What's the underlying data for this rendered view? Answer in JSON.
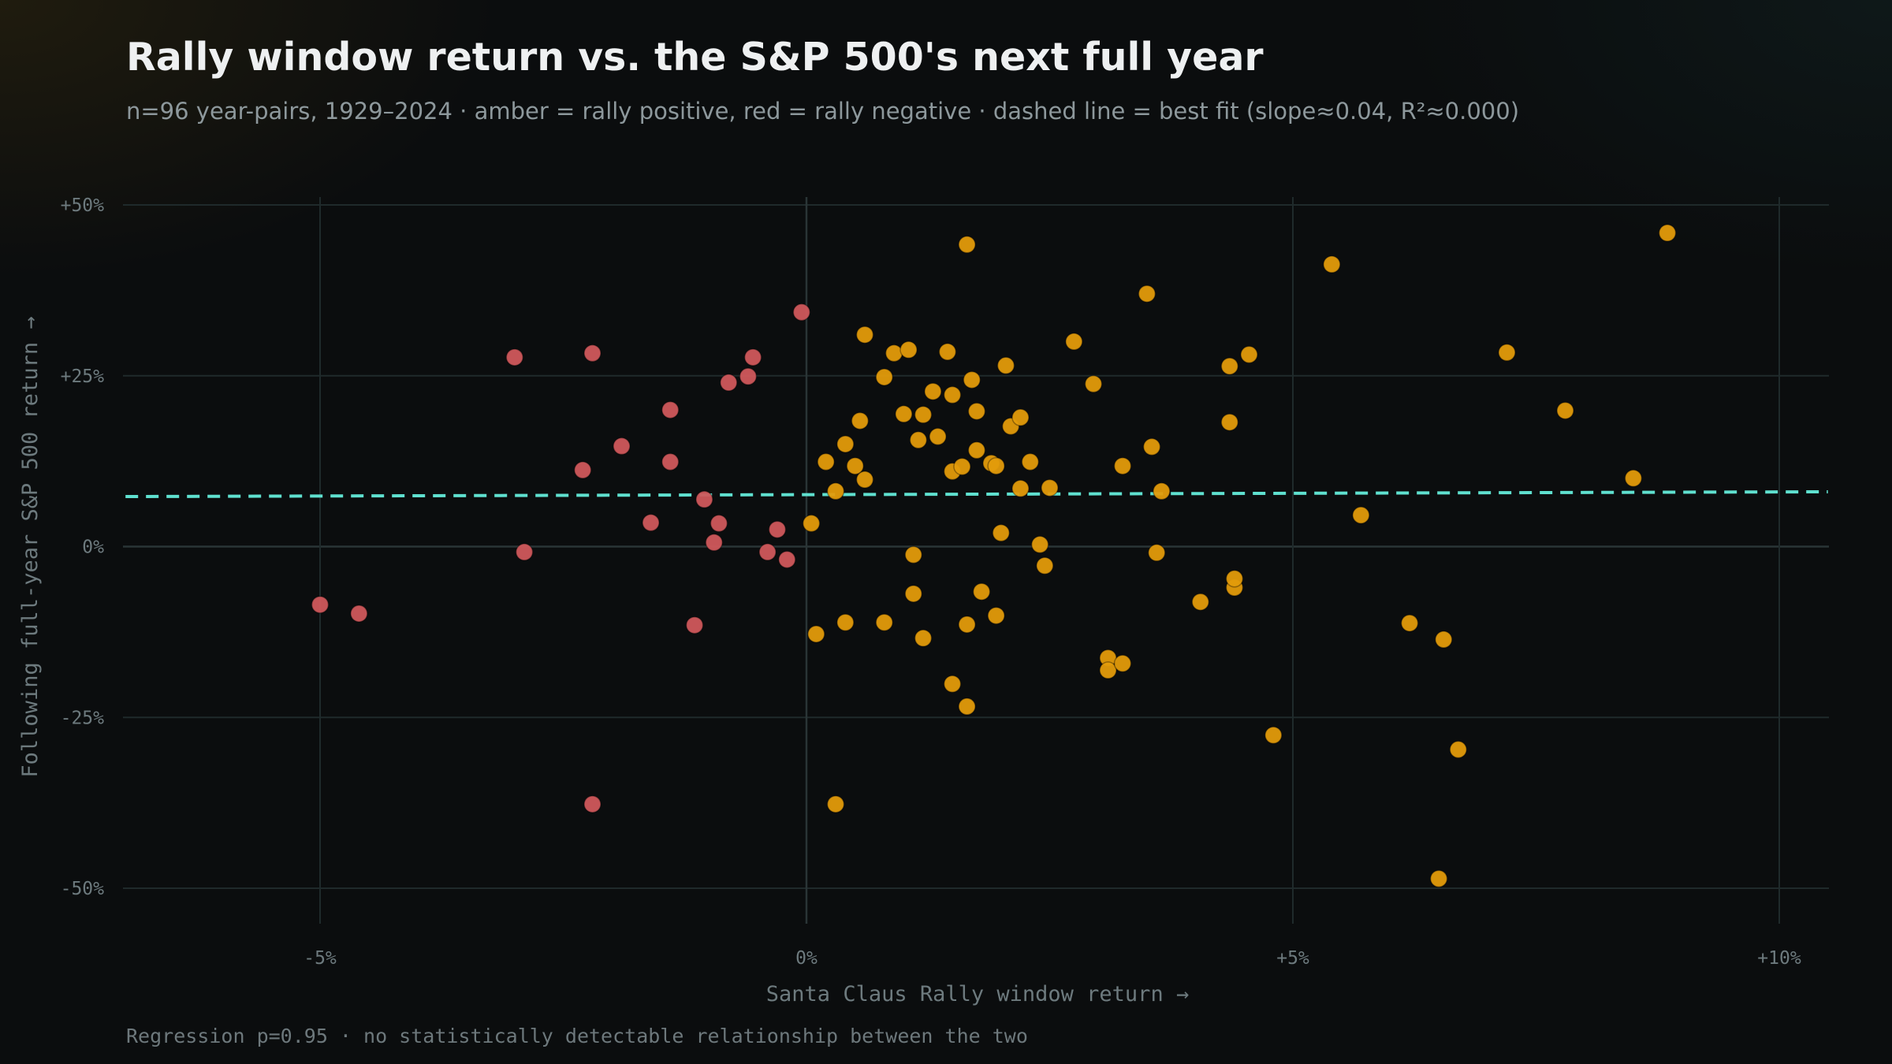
{
  "header": {
    "title": "Rally window return vs. the S&P 500's next full year",
    "subtitle": "n=96 year-pairs, 1929–2024 · amber = rally positive, red = rally negative · dashed line = best fit (slope≈0.04, R²≈0.000)"
  },
  "footnote": "Regression p=0.95 · no statistically detectable relationship between the two",
  "colors": {
    "positive": "#e39b0b",
    "negative": "#d0595c",
    "fit_line": "#5fe0cf",
    "grid": "#1f2a2b",
    "zero_line": "#2a3536"
  },
  "chart_data": {
    "type": "scatter",
    "title": "Rally window return vs. the S&P 500's next full year",
    "xlabel": "Santa Claus Rally window return →",
    "ylabel": "Following full-year S&P 500 return →",
    "xlim": [
      -7.0,
      10.5
    ],
    "ylim": [
      -55,
      50
    ],
    "x_ticks": [
      -5,
      0,
      5,
      10
    ],
    "x_tick_labels": [
      "-5%",
      "0%",
      "+5%",
      "+10%"
    ],
    "y_ticks": [
      50,
      25,
      0,
      -25,
      -50
    ],
    "y_tick_labels": [
      "+50%",
      "+25%",
      "0%",
      "-25%",
      "-50%"
    ],
    "grid": true,
    "fit_line": {
      "slope": 0.04,
      "intercept": 7.6,
      "style": "dashed"
    },
    "series": [
      {
        "color_key": "negative",
        "points": [
          [
            -5.0,
            -8.5
          ],
          [
            -4.6,
            -9.8
          ],
          [
            -3.0,
            27.7
          ],
          [
            -2.9,
            -0.8
          ],
          [
            -2.3,
            11.2
          ],
          [
            -2.2,
            28.3
          ],
          [
            -2.2,
            -37.7
          ],
          [
            -1.9,
            14.7
          ],
          [
            -1.6,
            3.5
          ],
          [
            -1.4,
            20.0
          ],
          [
            -1.4,
            12.4
          ],
          [
            -1.15,
            -11.5
          ],
          [
            -1.05,
            6.9
          ],
          [
            -0.95,
            0.6
          ],
          [
            -0.9,
            3.4
          ],
          [
            -0.8,
            24.0
          ],
          [
            -0.6,
            24.9
          ],
          [
            -0.55,
            27.7
          ],
          [
            -0.4,
            -0.8
          ],
          [
            -0.3,
            2.5
          ],
          [
            -0.2,
            -1.9
          ],
          [
            -0.05,
            34.3
          ]
        ]
      },
      {
        "color_key": "positive",
        "points": [
          [
            0.05,
            3.4
          ],
          [
            0.1,
            -12.8
          ],
          [
            0.2,
            12.4
          ],
          [
            0.3,
            8.1
          ],
          [
            0.3,
            -37.7
          ],
          [
            0.4,
            15.0
          ],
          [
            0.4,
            -11.1
          ],
          [
            0.5,
            11.8
          ],
          [
            0.55,
            18.4
          ],
          [
            0.6,
            31.0
          ],
          [
            0.6,
            9.8
          ],
          [
            0.8,
            24.8
          ],
          [
            0.8,
            -11.1
          ],
          [
            0.9,
            28.3
          ],
          [
            1.0,
            19.4
          ],
          [
            1.05,
            28.8
          ],
          [
            1.1,
            -6.9
          ],
          [
            1.1,
            -1.2
          ],
          [
            1.15,
            15.6
          ],
          [
            1.2,
            19.3
          ],
          [
            1.2,
            -13.4
          ],
          [
            1.3,
            22.7
          ],
          [
            1.35,
            16.1
          ],
          [
            1.45,
            28.5
          ],
          [
            1.5,
            22.2
          ],
          [
            1.5,
            -20.1
          ],
          [
            1.5,
            11.0
          ],
          [
            1.6,
            11.7
          ],
          [
            1.65,
            44.2
          ],
          [
            1.65,
            -11.4
          ],
          [
            1.65,
            -23.4
          ],
          [
            1.7,
            24.4
          ],
          [
            1.75,
            19.8
          ],
          [
            1.75,
            14.1
          ],
          [
            1.8,
            -6.6
          ],
          [
            1.9,
            12.2
          ],
          [
            1.95,
            11.8
          ],
          [
            1.95,
            -10.1
          ],
          [
            2.0,
            2.0
          ],
          [
            2.05,
            26.5
          ],
          [
            2.1,
            17.6
          ],
          [
            2.2,
            18.9
          ],
          [
            2.2,
            8.5
          ],
          [
            2.3,
            12.4
          ],
          [
            2.4,
            0.3
          ],
          [
            2.45,
            -2.8
          ],
          [
            2.5,
            8.6
          ],
          [
            2.75,
            30.0
          ],
          [
            2.95,
            23.8
          ],
          [
            3.1,
            -16.3
          ],
          [
            3.1,
            -18.1
          ],
          [
            3.25,
            11.8
          ],
          [
            3.25,
            -17.1
          ],
          [
            3.5,
            37.0
          ],
          [
            3.55,
            14.6
          ],
          [
            3.6,
            -0.9
          ],
          [
            3.65,
            8.1
          ],
          [
            4.05,
            -8.1
          ],
          [
            4.35,
            18.2
          ],
          [
            4.35,
            26.4
          ],
          [
            4.4,
            -6.0
          ],
          [
            4.4,
            -4.7
          ],
          [
            4.55,
            28.1
          ],
          [
            4.8,
            -27.6
          ],
          [
            5.4,
            41.3
          ],
          [
            5.7,
            4.6
          ],
          [
            6.2,
            -11.2
          ],
          [
            6.5,
            -48.6
          ],
          [
            6.55,
            -13.6
          ],
          [
            6.7,
            -29.7
          ],
          [
            7.2,
            28.4
          ],
          [
            7.8,
            19.9
          ],
          [
            8.5,
            10.0
          ],
          [
            8.85,
            45.9
          ]
        ]
      }
    ]
  }
}
